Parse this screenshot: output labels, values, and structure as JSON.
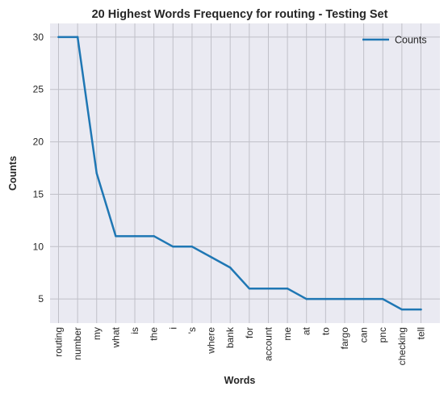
{
  "chart_data": {
    "type": "line",
    "title": "20 Highest Words Frequency for routing - Testing Set",
    "xlabel": "Words",
    "ylabel": "Counts",
    "categories": [
      "routing",
      "number",
      "my",
      "what",
      "is",
      "the",
      "i",
      "'s",
      "where",
      "bank",
      "for",
      "account",
      "me",
      "at",
      "to",
      "fargo",
      "can",
      "pnc",
      "checking",
      "tell"
    ],
    "series": [
      {
        "name": "Counts",
        "values": [
          30,
          30,
          17,
          11,
          11,
          11,
          10,
          10,
          9,
          8,
          6,
          6,
          6,
          5,
          5,
          5,
          5,
          5,
          4,
          4
        ],
        "color": "#1f77b4"
      }
    ],
    "ylim": [
      2.7,
      31.3
    ],
    "yticks": [
      5,
      10,
      15,
      20,
      25,
      30
    ],
    "grid": true,
    "legend_position": "top-right",
    "background_color": "#eaeaf2",
    "grid_color": "#c0c0c8"
  }
}
